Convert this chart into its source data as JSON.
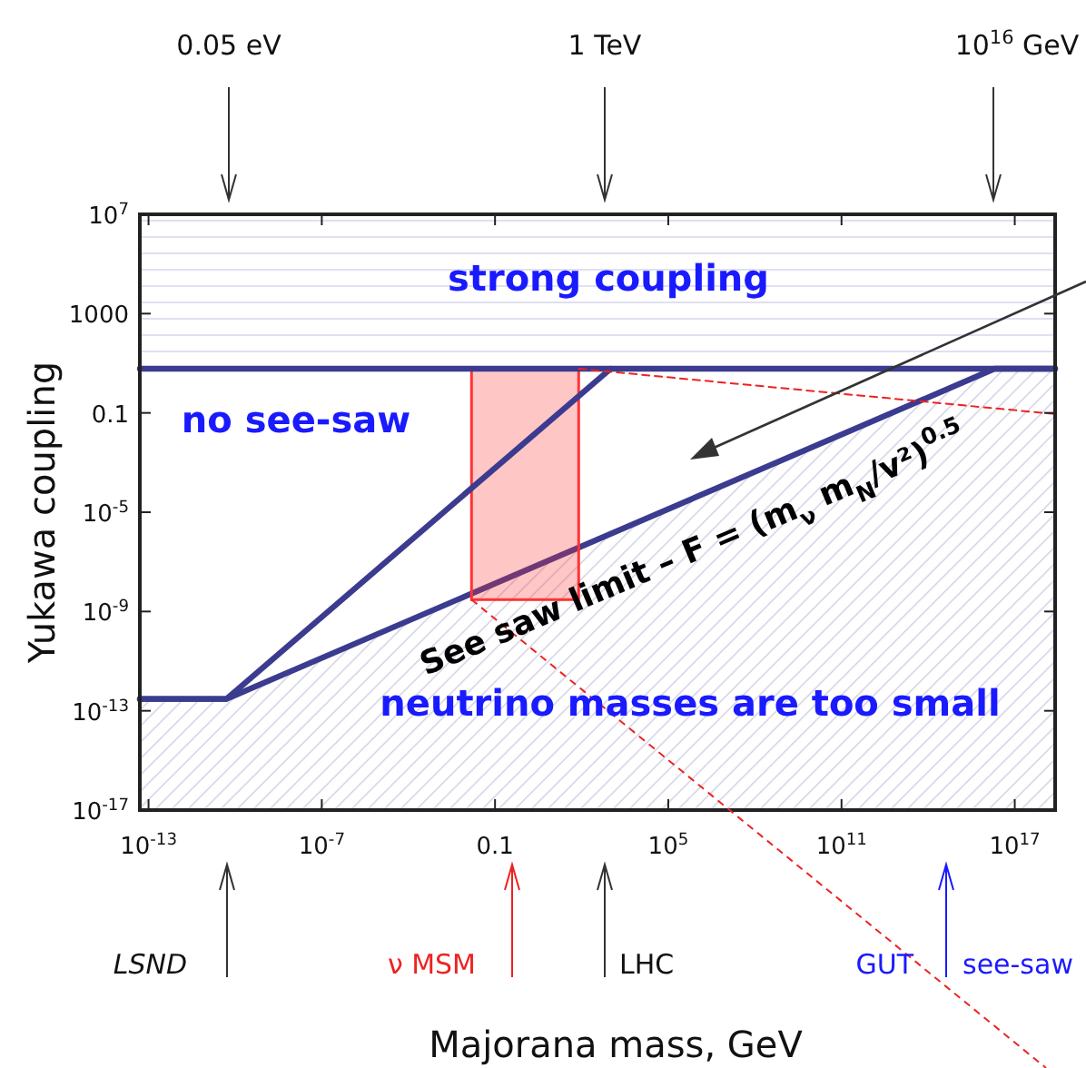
{
  "chart_data": {
    "type": "line",
    "xlabel": "Majorana mass, GeV",
    "ylabel": "Yukawa coupling",
    "log": "xy",
    "xlim": [
      5e-14,
      2.5e+18
    ],
    "ylim": [
      1e-17,
      10000000.0
    ],
    "xticks": [
      {
        "value": 1e-13,
        "label": "10$^{-13}$"
      },
      {
        "value": 1e-07,
        "label": "10$^{-7}$"
      },
      0.1,
      {
        "value": 100000.0,
        "label": "10$^{5}$"
      },
      {
        "value": 100000000000.0,
        "label": "10$^{11}$"
      },
      {
        "value": 1e+17,
        "label": "10$^{17}$"
      }
    ],
    "yticks": [
      {
        "value": 1e-17,
        "label": "10$^{-17}$"
      },
      {
        "value": 1e-13,
        "label": "10$^{-13}$"
      },
      {
        "value": 1e-09,
        "label": "10$^{-9}$"
      },
      {
        "value": 1e-05,
        "label": "10$^{-5}$"
      },
      0.1,
      1000,
      {
        "value": 10000000.0,
        "label": "10$^{7}$"
      }
    ],
    "bands": [
      {
        "axis": "y",
        "from": 6,
        "to": 10000000.0,
        "color": "#d8d8ee"
      }
    ],
    "series": [
      {
        "type": "area",
        "color": "#3b3b8f",
        "x": [
          5e-14,
          5e-11,
          2e+16,
          2.5e+18
        ],
        "values": [
          3e-13,
          3e-13,
          6,
          6
        ]
      },
      {
        "type": "bar",
        "color": "#ff3333",
        "x": [
          1.1
        ],
        "values": [
          6
        ],
        "base": [
          3e-09
        ]
      },
      {
        "color": "#3b3b8f",
        "x": [
          5e-14,
          2.5e+18
        ],
        "values": [
          6,
          6
        ]
      },
      {
        "color": "#3b3b8f",
        "x": [
          5e-14,
          5e-11,
          1000
        ],
        "values": [
          3e-13,
          3e-13,
          6
        ]
      },
      {
        "color": "#ee2222",
        "line_style": "dashed",
        "x": [
          80,
          2.5e+18
        ],
        "values": [
          6,
          0.09
        ]
      }
    ],
    "annotations": [
      "0.05 eV",
      "1 TeV",
      "10$^{16}$ GeV",
      "strong coupling",
      "no see-saw",
      "neutrino masses are too small",
      "See saw limit – F = (m$_{ν}$ m$_{N}$/v²)$^{0.5}$",
      "LSND",
      "ν MSM",
      "LHC",
      "GUT",
      "see-saw"
    ]
  }
}
